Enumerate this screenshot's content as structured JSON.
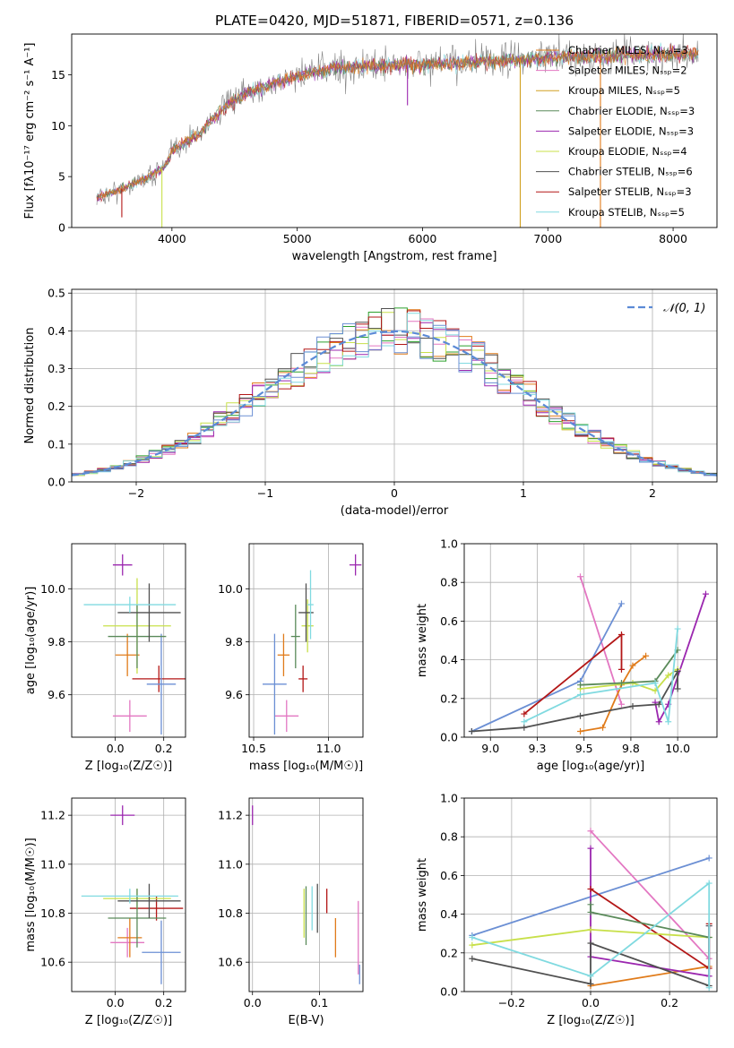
{
  "title": "PLATE=0420, MJD=51871, FIBERID=0571, z=0.136",
  "palette": [
    "#e07b1a",
    "#e377c2",
    "#1f77b4",
    "#2ca02c",
    "#9b27af",
    "#c8e04a",
    "#505050",
    "#b31717",
    "#80dae0",
    "#6b8fd4",
    "#5a8a5a",
    "#d1a020"
  ],
  "chart_data": [
    {
      "id": "spectrum",
      "type": "line",
      "xlabel": "wavelength [Angstrom, rest frame]",
      "ylabel": "Flux [fλ10⁻¹⁷ erg cm⁻² s⁻¹ A⁻¹]",
      "xlim": [
        3200,
        8350
      ],
      "ylim": [
        0,
        19
      ],
      "xticks": [
        4000,
        5000,
        6000,
        7000,
        8000
      ],
      "yticks": [
        0,
        5,
        10,
        15
      ],
      "grid": false,
      "legend_position": "top-right",
      "legend": [
        {
          "label": "Chabrier MILES, Nₛₛₚ=3",
          "color": "#e07b1a"
        },
        {
          "label": "Salpeter MILES, Nₛₛₚ=2",
          "color": "#e377c2"
        },
        {
          "label": "Kroupa MILES, Nₛₛₚ=5",
          "color": "#d1a020"
        },
        {
          "label": "Chabrier ELODIE, Nₛₛₚ=3",
          "color": "#5a8a5a"
        },
        {
          "label": "Salpeter ELODIE, Nₛₛₚ=3",
          "color": "#9b27af"
        },
        {
          "label": "Kroupa ELODIE, Nₛₛₚ=4",
          "color": "#c8e04a"
        },
        {
          "label": "Chabrier STELIB, Nₛₛₚ=6",
          "color": "#505050"
        },
        {
          "label": "Salpeter STELIB, Nₛₛₚ=3",
          "color": "#b31717"
        },
        {
          "label": "Kroupa STELIB, Nₛₛₚ=5",
          "color": "#80dae0"
        }
      ],
      "continuum": {
        "x": [
          3400,
          3600,
          3800,
          3950,
          4000,
          4200,
          4400,
          4600,
          4800,
          5000,
          5300,
          5600,
          6000,
          6400,
          6800,
          7200,
          7600,
          8000,
          8200
        ],
        "y": [
          2.9,
          3.8,
          4.9,
          6.0,
          7.6,
          9.0,
          11.6,
          13.2,
          14.1,
          15.0,
          15.6,
          15.9,
          16.0,
          16.2,
          16.5,
          16.8,
          16.9,
          17.0,
          17.1
        ]
      },
      "dropouts": [
        {
          "x": 3600,
          "y": 1.0
        },
        {
          "x": 3920,
          "y": 0.0
        },
        {
          "x": 5880,
          "y": 12.0
        },
        {
          "x": 6780,
          "y": 0.0
        },
        {
          "x": 7420,
          "y": 0.0
        }
      ]
    },
    {
      "id": "residuals",
      "type": "histogram",
      "xlabel": "(data-model)/error",
      "ylabel": "Normed distribution",
      "xlim": [
        -2.5,
        2.5
      ],
      "ylim": [
        0,
        0.51
      ],
      "xticks": [
        -2,
        -1,
        0,
        1,
        2
      ],
      "yticks": [
        0.0,
        0.1,
        0.2,
        0.3,
        0.4,
        0.5
      ],
      "grid": true,
      "legend_position": "top-right",
      "legend": [
        {
          "label": "𝒩(0, 1)",
          "color": "#5b8ad6"
        }
      ],
      "bin_width": 0.1,
      "bin_start": -2.5,
      "n_series": 9
    },
    {
      "id": "age-Z",
      "type": "errorbar",
      "xlabel": "Z [log₁₀(Z/Z☉)]",
      "ylabel": "age  [log₁₀(age/yr)]",
      "xlim": [
        -0.18,
        0.29
      ],
      "ylim": [
        9.44,
        10.17
      ],
      "xticks": [
        0.0,
        0.2
      ],
      "yticks": [
        9.6,
        9.8,
        10.0
      ],
      "grid": true,
      "points": [
        {
          "x": 0.03,
          "y": 10.09,
          "xerr": 0.04,
          "yerr": 0.04,
          "color": "#9b27af"
        },
        {
          "x": 0.18,
          "y": 9.66,
          "xerr": 0.11,
          "yerr": 0.05,
          "color": "#b31717"
        },
        {
          "x": 0.06,
          "y": 9.52,
          "xerr": 0.07,
          "yerr": 0.06,
          "color": "#e377c2"
        },
        {
          "x": 0.19,
          "y": 9.64,
          "xerr": 0.06,
          "yerr": 0.19,
          "color": "#6b8fd4"
        },
        {
          "x": 0.05,
          "y": 9.75,
          "xerr": 0.05,
          "yerr": 0.08,
          "color": "#e07b1a"
        },
        {
          "x": 0.09,
          "y": 9.86,
          "xerr": 0.14,
          "yerr": 0.18,
          "color": "#c8e04a"
        },
        {
          "x": 0.09,
          "y": 9.82,
          "xerr": 0.12,
          "yerr": 0.12,
          "color": "#5a8a5a"
        },
        {
          "x": 0.14,
          "y": 9.91,
          "xerr": 0.13,
          "yerr": 0.11,
          "color": "#505050"
        },
        {
          "x": 0.06,
          "y": 9.94,
          "xerr": 0.19,
          "yerr": 0.03,
          "color": "#80dae0"
        }
      ]
    },
    {
      "id": "age-mass",
      "type": "errorbar",
      "xlabel": "mass [log₁₀(M/M☉)]",
      "ylabel": "",
      "xlim": [
        10.47,
        11.23
      ],
      "ylim": [
        9.44,
        10.17
      ],
      "xticks": [
        10.5,
        11.0
      ],
      "yticks": [
        9.6,
        9.8,
        10.0
      ],
      "grid": true,
      "points": [
        {
          "x": 11.18,
          "y": 10.09,
          "xerr": 0.04,
          "yerr": 0.04,
          "color": "#9b27af"
        },
        {
          "x": 10.83,
          "y": 9.66,
          "xerr": 0.03,
          "yerr": 0.05,
          "color": "#b31717"
        },
        {
          "x": 10.72,
          "y": 9.52,
          "xerr": 0.08,
          "yerr": 0.06,
          "color": "#e377c2"
        },
        {
          "x": 10.64,
          "y": 9.64,
          "xerr": 0.08,
          "yerr": 0.19,
          "color": "#6b8fd4"
        },
        {
          "x": 10.7,
          "y": 9.75,
          "xerr": 0.04,
          "yerr": 0.08,
          "color": "#e07b1a"
        },
        {
          "x": 10.86,
          "y": 9.86,
          "xerr": 0.04,
          "yerr": 0.1,
          "color": "#c8e04a"
        },
        {
          "x": 10.78,
          "y": 9.82,
          "xerr": 0.03,
          "yerr": 0.12,
          "color": "#5a8a5a"
        },
        {
          "x": 10.85,
          "y": 9.91,
          "xerr": 0.05,
          "yerr": 0.11,
          "color": "#505050"
        },
        {
          "x": 10.88,
          "y": 9.94,
          "xerr": 0.02,
          "yerr": 0.13,
          "color": "#80dae0"
        }
      ]
    },
    {
      "id": "weights-age",
      "type": "line",
      "xlabel": "age  [log₁₀(age/yr)]",
      "ylabel": "mass weight",
      "xlim": [
        8.86,
        10.21
      ],
      "ylim": [
        0.0,
        1.0
      ],
      "xticks": [
        9.0,
        9.25,
        9.5,
        9.75,
        10.0
      ],
      "yticks": [
        0.0,
        0.2,
        0.4,
        0.6,
        0.8,
        1.0
      ],
      "grid": true,
      "series": [
        {
          "color": "#e377c2",
          "x": [
            9.48,
            9.7
          ],
          "y": [
            0.83,
            0.17
          ]
        },
        {
          "color": "#6b8fd4",
          "x": [
            8.9,
            9.48,
            9.7
          ],
          "y": [
            0.03,
            0.29,
            0.69
          ]
        },
        {
          "color": "#e07b1a",
          "x": [
            9.48,
            9.6,
            9.7,
            9.76,
            9.83
          ],
          "y": [
            0.03,
            0.05,
            0.27,
            0.37,
            0.42
          ]
        },
        {
          "color": "#9b27af",
          "x": [
            9.88,
            9.9,
            9.95,
            10.15
          ],
          "y": [
            0.18,
            0.08,
            0.17,
            0.74
          ]
        },
        {
          "color": "#b31717",
          "x": [
            9.18,
            9.7,
            9.7
          ],
          "y": [
            0.12,
            0.53,
            0.35
          ]
        },
        {
          "color": "#c8e04a",
          "x": [
            9.48,
            9.76,
            9.88,
            9.95,
            10.0
          ],
          "y": [
            0.25,
            0.28,
            0.24,
            0.32,
            0.35
          ]
        },
        {
          "color": "#5a8a5a",
          "x": [
            9.48,
            9.7,
            9.88,
            10.0
          ],
          "y": [
            0.27,
            0.28,
            0.29,
            0.45
          ]
        },
        {
          "color": "#505050",
          "x": [
            8.9,
            9.18,
            9.48,
            9.76,
            9.9,
            10.0,
            10.0
          ],
          "y": [
            0.03,
            0.05,
            0.11,
            0.16,
            0.17,
            0.34,
            0.25
          ]
        },
        {
          "color": "#80dae0",
          "x": [
            9.18,
            9.48,
            9.88,
            9.95,
            10.0
          ],
          "y": [
            0.08,
            0.22,
            0.28,
            0.08,
            0.56
          ]
        }
      ]
    },
    {
      "id": "mass-Z",
      "type": "errorbar",
      "xlabel": "Z [log₁₀(Z/Z☉)]",
      "ylabel": "mass [log₁₀(M/M☉)]",
      "xlim": [
        -0.18,
        0.29
      ],
      "ylim": [
        10.48,
        11.27
      ],
      "xticks": [
        0.0,
        0.2
      ],
      "yticks": [
        10.6,
        10.8,
        11.0,
        11.2
      ],
      "grid": true,
      "points": [
        {
          "x": 0.03,
          "y": 11.2,
          "xerr": 0.05,
          "yerr": 0.04,
          "color": "#9b27af"
        },
        {
          "x": 0.17,
          "y": 10.82,
          "xerr": 0.11,
          "yerr": 0.05,
          "color": "#b31717"
        },
        {
          "x": 0.05,
          "y": 10.68,
          "xerr": 0.07,
          "yerr": 0.06,
          "color": "#e377c2"
        },
        {
          "x": 0.19,
          "y": 10.64,
          "xerr": 0.08,
          "yerr": 0.13,
          "color": "#6b8fd4"
        },
        {
          "x": 0.06,
          "y": 10.7,
          "xerr": 0.05,
          "yerr": 0.08,
          "color": "#e07b1a"
        },
        {
          "x": 0.09,
          "y": 10.86,
          "xerr": 0.14,
          "yerr": 0.04,
          "color": "#c8e04a"
        },
        {
          "x": 0.09,
          "y": 10.78,
          "xerr": 0.12,
          "yerr": 0.12,
          "color": "#5a8a5a"
        },
        {
          "x": 0.14,
          "y": 10.85,
          "xerr": 0.13,
          "yerr": 0.07,
          "color": "#505050"
        },
        {
          "x": 0.06,
          "y": 10.87,
          "xerr": 0.2,
          "yerr": 0.03,
          "color": "#80dae0"
        }
      ]
    },
    {
      "id": "mass-EBV",
      "type": "errorbar",
      "xlabel": "E(B-V)",
      "ylabel": "",
      "xlim": [
        -0.005,
        0.165
      ],
      "ylim": [
        10.48,
        11.27
      ],
      "xticks": [
        0.0,
        0.1
      ],
      "yticks": [
        10.6,
        10.8,
        11.0,
        11.2
      ],
      "grid": true,
      "points": [
        {
          "x": 0.0,
          "y": 11.2,
          "xerr": 0,
          "yerr": 0.04,
          "color": "#9b27af"
        },
        {
          "x": 0.111,
          "y": 10.85,
          "xerr": 0,
          "yerr": 0.05,
          "color": "#b31717"
        },
        {
          "x": 0.158,
          "y": 10.7,
          "xerr": 0,
          "yerr": 0.15,
          "color": "#e377c2"
        },
        {
          "x": 0.16,
          "y": 10.55,
          "xerr": 0,
          "yerr": 0.04,
          "color": "#6b8fd4"
        },
        {
          "x": 0.124,
          "y": 10.7,
          "xerr": 0,
          "yerr": 0.08,
          "color": "#e07b1a"
        },
        {
          "x": 0.077,
          "y": 10.8,
          "xerr": 0,
          "yerr": 0.1,
          "color": "#c8e04a"
        },
        {
          "x": 0.08,
          "y": 10.79,
          "xerr": 0,
          "yerr": 0.12,
          "color": "#5a8a5a"
        },
        {
          "x": 0.097,
          "y": 10.82,
          "xerr": 0,
          "yerr": 0.1,
          "color": "#505050"
        },
        {
          "x": 0.089,
          "y": 10.82,
          "xerr": 0,
          "yerr": 0.09,
          "color": "#80dae0"
        }
      ]
    },
    {
      "id": "weights-Z",
      "type": "line",
      "xlabel": "Z [log₁₀(Z/Z☉)]",
      "ylabel": "mass weight",
      "xlim": [
        -0.32,
        0.32
      ],
      "ylim": [
        0.0,
        1.0
      ],
      "xticks": [
        -0.2,
        0.0,
        0.2
      ],
      "yticks": [
        0.0,
        0.2,
        0.4,
        0.6,
        0.8,
        1.0
      ],
      "grid": true,
      "series": [
        {
          "color": "#e377c2",
          "x": [
            0.0,
            0.3
          ],
          "y": [
            0.83,
            0.17
          ]
        },
        {
          "color": "#6b8fd4",
          "x": [
            -0.3,
            0.3
          ],
          "y": [
            0.29,
            0.69
          ]
        },
        {
          "color": "#e07b1a",
          "x": [
            0.0,
            0.3
          ],
          "y": [
            0.03,
            0.13
          ]
        },
        {
          "color": "#9b27af",
          "x": [
            0.0,
            0.0,
            0.3,
            0.3
          ],
          "y": [
            0.74,
            0.18,
            0.08,
            0.34
          ]
        },
        {
          "color": "#b31717",
          "x": [
            0.0,
            0.3,
            0.3
          ],
          "y": [
            0.53,
            0.12,
            0.35
          ]
        },
        {
          "color": "#c8e04a",
          "x": [
            -0.3,
            0.0,
            0.3
          ],
          "y": [
            0.24,
            0.32,
            0.28
          ]
        },
        {
          "color": "#5a8a5a",
          "x": [
            0.0,
            0.0,
            0.3
          ],
          "y": [
            0.45,
            0.41,
            0.28
          ]
        },
        {
          "color": "#505050",
          "x": [
            -0.3,
            0.0,
            0.0,
            0.3,
            0.3
          ],
          "y": [
            0.17,
            0.04,
            0.25,
            0.03,
            0.34
          ]
        },
        {
          "color": "#80dae0",
          "x": [
            -0.3,
            0.0,
            0.3,
            0.3
          ],
          "y": [
            0.28,
            0.08,
            0.56,
            0.02
          ]
        }
      ]
    }
  ]
}
